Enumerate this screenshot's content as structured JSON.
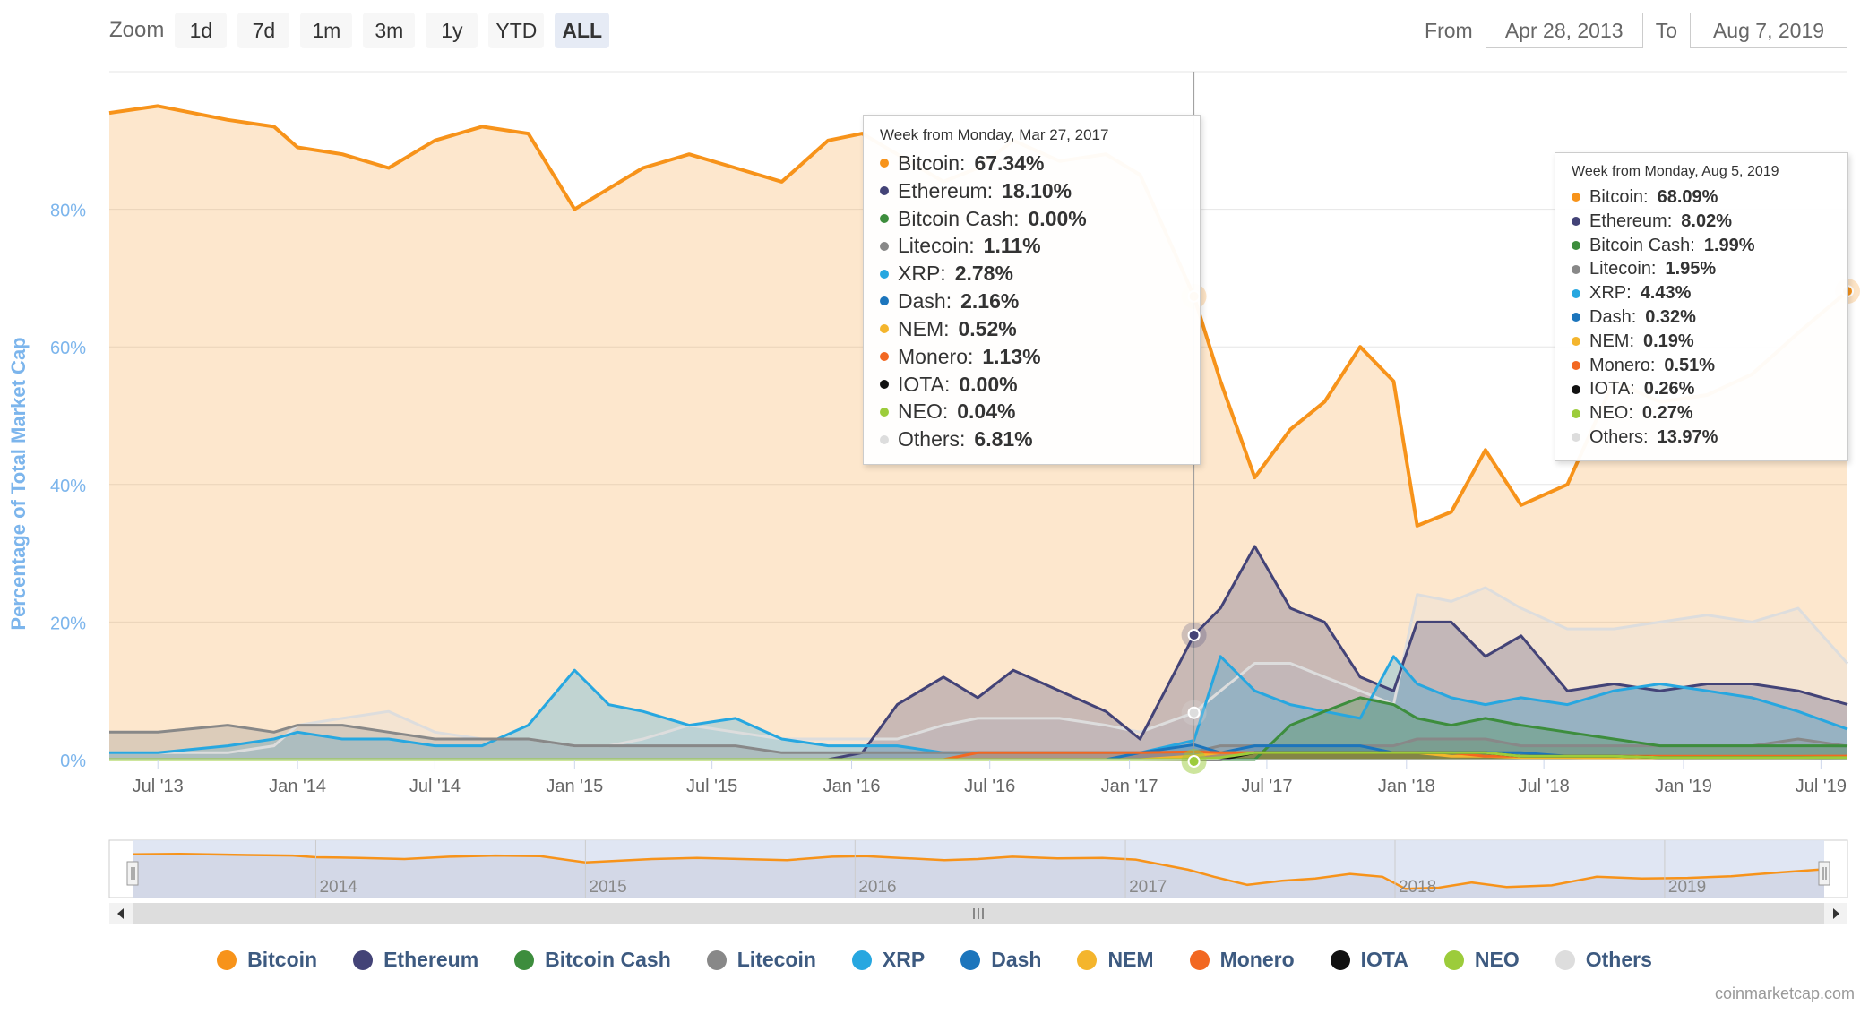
{
  "toolbar": {
    "zoom_label": "Zoom",
    "buttons": [
      "1d",
      "7d",
      "1m",
      "3m",
      "1y",
      "YTD",
      "ALL"
    ],
    "active": "ALL",
    "from_label": "From",
    "from_value": "Apr 28, 2013",
    "to_label": "To",
    "to_value": "Aug 7, 2019"
  },
  "credit": "coinmarketcap.com",
  "chart_data": {
    "type": "area",
    "ylabel": "Percentage of Total Market Cap",
    "ylim": [
      0,
      100
    ],
    "yticks": [
      "0%",
      "20%",
      "40%",
      "60%",
      "80%"
    ],
    "grid": true,
    "xticks": [
      "Jul '13",
      "Jan '14",
      "Jul '14",
      "Jan '15",
      "Jul '15",
      "Jan '16",
      "Jul '16",
      "Jan '17",
      "Jul '17",
      "Jan '18",
      "Jul '18",
      "Jan '19",
      "Jul '19"
    ],
    "navigator_years": [
      "2014",
      "2015",
      "2016",
      "2017",
      "2018",
      "2019"
    ],
    "x": [
      "2013-04-28",
      "2013-07-01",
      "2013-10-01",
      "2013-12-01",
      "2014-01-01",
      "2014-03-01",
      "2014-05-01",
      "2014-07-01",
      "2014-09-01",
      "2014-11-01",
      "2015-01-01",
      "2015-02-15",
      "2015-04-01",
      "2015-06-01",
      "2015-08-01",
      "2015-10-01",
      "2015-12-01",
      "2016-01-15",
      "2016-03-01",
      "2016-05-01",
      "2016-06-15",
      "2016-08-01",
      "2016-10-01",
      "2016-12-01",
      "2017-01-15",
      "2017-03-27",
      "2017-05-01",
      "2017-06-15",
      "2017-08-01",
      "2017-09-15",
      "2017-11-01",
      "2017-12-15",
      "2018-01-15",
      "2018-03-01",
      "2018-04-15",
      "2018-06-01",
      "2018-08-01",
      "2018-10-01",
      "2018-12-01",
      "2019-02-01",
      "2019-04-01",
      "2019-06-01",
      "2019-08-05"
    ],
    "series": [
      {
        "name": "Bitcoin",
        "color": "#f7931a",
        "values": [
          94,
          95,
          93,
          92,
          89,
          88,
          86,
          90,
          92,
          91,
          80,
          83,
          86,
          88,
          86,
          84,
          90,
          91,
          88,
          84,
          86,
          90,
          87,
          88,
          85,
          67.34,
          55,
          41,
          48,
          52,
          60,
          55,
          34,
          36,
          45,
          37,
          40,
          55,
          52,
          53,
          56,
          62,
          68.09
        ]
      },
      {
        "name": "Ethereum",
        "color": "#434377",
        "values": [
          0,
          0,
          0,
          0,
          0,
          0,
          0,
          0,
          0,
          0,
          0,
          0,
          0,
          0,
          0,
          0,
          0,
          1,
          8,
          12,
          9,
          13,
          10,
          7,
          3,
          18.1,
          22,
          31,
          22,
          20,
          12,
          10,
          20,
          20,
          15,
          18,
          10,
          11,
          10,
          11,
          11,
          10,
          8.02
        ]
      },
      {
        "name": "Bitcoin Cash",
        "color": "#3d8d3d",
        "values": [
          0,
          0,
          0,
          0,
          0,
          0,
          0,
          0,
          0,
          0,
          0,
          0,
          0,
          0,
          0,
          0,
          0,
          0,
          0,
          0,
          0,
          0,
          0,
          0,
          0,
          0,
          0,
          0,
          5,
          7,
          9,
          8,
          6,
          5,
          6,
          5,
          4,
          3,
          2,
          2,
          2,
          2,
          1.99
        ]
      },
      {
        "name": "Litecoin",
        "color": "#888888",
        "values": [
          4,
          4,
          5,
          4,
          5,
          5,
          4,
          3,
          3,
          3,
          2,
          2,
          2,
          2,
          2,
          1,
          1,
          1,
          1,
          1,
          1,
          1,
          1,
          1,
          1,
          1.11,
          2,
          2,
          2,
          2,
          2,
          2,
          3,
          3,
          3,
          2,
          2,
          2,
          2,
          2,
          2,
          3,
          1.95
        ]
      },
      {
        "name": "XRP",
        "color": "#27a7e0",
        "values": [
          1,
          1,
          2,
          3,
          4,
          3,
          3,
          2,
          2,
          5,
          13,
          8,
          7,
          5,
          6,
          3,
          2,
          2,
          2,
          1,
          1,
          1,
          1,
          1,
          1,
          2.78,
          15,
          10,
          8,
          7,
          6,
          15,
          11,
          9,
          8,
          9,
          8,
          10,
          11,
          10,
          9,
          7,
          4.43
        ]
      },
      {
        "name": "Dash",
        "color": "#1c75bc",
        "values": [
          0,
          0,
          0,
          0,
          0,
          0,
          0,
          0,
          0,
          0,
          0,
          0,
          0,
          0,
          0,
          0,
          0,
          0,
          0,
          0,
          0,
          0,
          0,
          0,
          1,
          2.16,
          1,
          2,
          2,
          2,
          2,
          1,
          1,
          1,
          1,
          1,
          0.5,
          0.5,
          0.4,
          0.3,
          0.3,
          0.3,
          0.32
        ]
      },
      {
        "name": "NEM",
        "color": "#f4b52d",
        "values": [
          0,
          0,
          0,
          0,
          0,
          0,
          0,
          0,
          0,
          0,
          0,
          0,
          0,
          0,
          0,
          0,
          0,
          0,
          0,
          0,
          0,
          0,
          0,
          0,
          0,
          0.52,
          1,
          1,
          1,
          1,
          1,
          1,
          1,
          0.5,
          0.5,
          0.3,
          0.3,
          0.2,
          0.2,
          0.2,
          0.2,
          0.2,
          0.19
        ]
      },
      {
        "name": "Monero",
        "color": "#f26822",
        "values": [
          0,
          0,
          0,
          0,
          0,
          0,
          0,
          0,
          0,
          0,
          0,
          0,
          0,
          0,
          0,
          0,
          0,
          0,
          0,
          0,
          1,
          1,
          1,
          1,
          1,
          1.13,
          1,
          1,
          1,
          1,
          1,
          1,
          1,
          1,
          0.5,
          0.5,
          0.5,
          0.5,
          0.5,
          0.5,
          0.5,
          0.5,
          0.51
        ]
      },
      {
        "name": "IOTA",
        "color": "#111111",
        "values": [
          0,
          0,
          0,
          0,
          0,
          0,
          0,
          0,
          0,
          0,
          0,
          0,
          0,
          0,
          0,
          0,
          0,
          0,
          0,
          0,
          0,
          0,
          0,
          0,
          0,
          0,
          0,
          1,
          1,
          1,
          1,
          1,
          1,
          1,
          1,
          0.5,
          0.5,
          0.5,
          0.3,
          0.3,
          0.3,
          0.3,
          0.26
        ]
      },
      {
        "name": "NEO",
        "color": "#9ccc3b",
        "values": [
          0,
          0,
          0,
          0,
          0,
          0,
          0,
          0,
          0,
          0,
          0,
          0,
          0,
          0,
          0,
          0,
          0,
          0,
          0,
          0,
          0,
          0,
          0,
          0,
          0,
          0.04,
          0.3,
          1,
          1,
          1,
          1,
          1,
          1,
          1,
          1,
          0.5,
          0.5,
          0.5,
          0.3,
          0.3,
          0.3,
          0.3,
          0.27
        ]
      },
      {
        "name": "Others",
        "color": "#dddddd",
        "values": [
          1,
          1,
          1,
          2,
          5,
          6,
          7,
          4,
          3,
          3,
          2,
          2,
          3,
          5,
          4,
          3,
          3,
          3,
          3,
          5,
          6,
          6,
          6,
          5,
          4,
          6.81,
          10,
          14,
          14,
          12,
          10,
          8,
          24,
          23,
          25,
          22,
          19,
          19,
          20,
          21,
          20,
          22,
          13.97
        ]
      }
    ],
    "tooltips": [
      {
        "header": "Week from Monday, Mar 27, 2017",
        "rows": [
          {
            "label": "Bitcoin:",
            "value": "67.34%"
          },
          {
            "label": "Ethereum:",
            "value": "18.10%"
          },
          {
            "label": "Bitcoin Cash:",
            "value": "0.00%"
          },
          {
            "label": "Litecoin:",
            "value": "1.11%"
          },
          {
            "label": "XRP:",
            "value": "2.78%"
          },
          {
            "label": "Dash:",
            "value": "2.16%"
          },
          {
            "label": "NEM:",
            "value": "0.52%"
          },
          {
            "label": "Monero:",
            "value": "1.13%"
          },
          {
            "label": "IOTA:",
            "value": "0.00%"
          },
          {
            "label": "NEO:",
            "value": "0.04%"
          },
          {
            "label": "Others:",
            "value": "6.81%"
          }
        ]
      },
      {
        "header": "Week from Monday, Aug 5, 2019",
        "rows": [
          {
            "label": "Bitcoin:",
            "value": "68.09%"
          },
          {
            "label": "Ethereum:",
            "value": "8.02%"
          },
          {
            "label": "Bitcoin Cash:",
            "value": "1.99%"
          },
          {
            "label": "Litecoin:",
            "value": "1.95%"
          },
          {
            "label": "XRP:",
            "value": "4.43%"
          },
          {
            "label": "Dash:",
            "value": "0.32%"
          },
          {
            "label": "NEM:",
            "value": "0.19%"
          },
          {
            "label": "Monero:",
            "value": "0.51%"
          },
          {
            "label": "IOTA:",
            "value": "0.26%"
          },
          {
            "label": "NEO:",
            "value": "0.27%"
          },
          {
            "label": "Others:",
            "value": "13.97%"
          }
        ]
      }
    ]
  }
}
